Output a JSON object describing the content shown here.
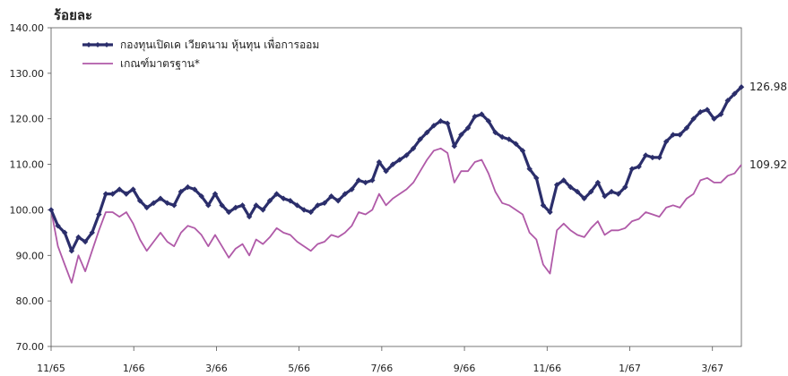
{
  "chart_data": {
    "type": "line",
    "title": "",
    "ylabel": "ร้อยละ",
    "xlabel": "",
    "ylim": [
      70,
      140
    ],
    "y_ticks": [
      "70.00",
      "80.00",
      "90.00",
      "100.00",
      "110.00",
      "120.00",
      "130.00",
      "140.00"
    ],
    "x_ticks": [
      "11/65",
      "1/66",
      "3/66",
      "5/66",
      "7/66",
      "9/66",
      "11/66",
      "1/67",
      "3/67"
    ],
    "legend_position": "top-left",
    "grid": false,
    "series": [
      {
        "name": "กองทุนเปิดเค เวียดนาม หุ้นทุน เพื่อการออม",
        "color": "#2b2e6b",
        "marker": "diamond",
        "end_label": "126.98",
        "points": [
          [
            0,
            100.0
          ],
          [
            1,
            96.5
          ],
          [
            2,
            95.0
          ],
          [
            3,
            91.0
          ],
          [
            4,
            94.0
          ],
          [
            5,
            93.0
          ],
          [
            6,
            95.0
          ],
          [
            7,
            99.0
          ],
          [
            8,
            103.5
          ],
          [
            9,
            103.5
          ],
          [
            10,
            104.5
          ],
          [
            11,
            103.5
          ],
          [
            12,
            104.5
          ],
          [
            13,
            102.0
          ],
          [
            14,
            100.5
          ],
          [
            15,
            101.5
          ],
          [
            16,
            102.5
          ],
          [
            17,
            101.5
          ],
          [
            18,
            101.0
          ],
          [
            19,
            104.0
          ],
          [
            20,
            105.0
          ],
          [
            21,
            104.5
          ],
          [
            22,
            103.0
          ],
          [
            23,
            101.0
          ],
          [
            24,
            103.5
          ],
          [
            25,
            101.0
          ],
          [
            26,
            99.5
          ],
          [
            27,
            100.5
          ],
          [
            28,
            101.0
          ],
          [
            29,
            98.5
          ],
          [
            30,
            101.0
          ],
          [
            31,
            100.0
          ],
          [
            32,
            102.0
          ],
          [
            33,
            103.5
          ],
          [
            34,
            102.5
          ],
          [
            35,
            102.0
          ],
          [
            36,
            101.0
          ],
          [
            37,
            100.0
          ],
          [
            38,
            99.5
          ],
          [
            39,
            101.0
          ],
          [
            40,
            101.5
          ],
          [
            41,
            103.0
          ],
          [
            42,
            102.0
          ],
          [
            43,
            103.5
          ],
          [
            44,
            104.5
          ],
          [
            45,
            106.5
          ],
          [
            46,
            106.0
          ],
          [
            47,
            106.5
          ],
          [
            48,
            110.5
          ],
          [
            49,
            108.5
          ],
          [
            50,
            110.0
          ],
          [
            51,
            111.0
          ],
          [
            52,
            112.0
          ],
          [
            53,
            113.5
          ],
          [
            54,
            115.5
          ],
          [
            55,
            117.0
          ],
          [
            56,
            118.5
          ],
          [
            57,
            119.5
          ],
          [
            58,
            119.0
          ],
          [
            59,
            114.0
          ],
          [
            60,
            116.5
          ],
          [
            61,
            118.0
          ],
          [
            62,
            120.5
          ],
          [
            63,
            121.0
          ],
          [
            64,
            119.5
          ],
          [
            65,
            117.0
          ],
          [
            66,
            116.0
          ],
          [
            67,
            115.5
          ],
          [
            68,
            114.5
          ],
          [
            69,
            113.0
          ],
          [
            70,
            109.0
          ],
          [
            71,
            107.0
          ],
          [
            72,
            101.0
          ],
          [
            73,
            99.5
          ],
          [
            74,
            105.5
          ],
          [
            75,
            106.5
          ],
          [
            76,
            105.0
          ],
          [
            77,
            104.0
          ],
          [
            78,
            102.5
          ],
          [
            79,
            104.0
          ],
          [
            80,
            106.0
          ],
          [
            81,
            103.0
          ],
          [
            82,
            104.0
          ],
          [
            83,
            103.5
          ],
          [
            84,
            105.0
          ],
          [
            85,
            109.0
          ],
          [
            86,
            109.5
          ],
          [
            87,
            112.0
          ],
          [
            88,
            111.5
          ],
          [
            89,
            111.5
          ],
          [
            90,
            115.0
          ],
          [
            91,
            116.5
          ],
          [
            92,
            116.5
          ],
          [
            93,
            118.0
          ],
          [
            94,
            120.0
          ],
          [
            95,
            121.5
          ],
          [
            96,
            122.0
          ],
          [
            97,
            120.0
          ],
          [
            98,
            121.0
          ],
          [
            99,
            124.0
          ],
          [
            100,
            125.5
          ],
          [
            101,
            126.98
          ]
        ]
      },
      {
        "name": "เกณฑ์มาตรฐาน*",
        "color": "#b05aa8",
        "marker": "none",
        "end_label": "109.92",
        "points": [
          [
            0,
            100.0
          ],
          [
            1,
            92.0
          ],
          [
            2,
            88.0
          ],
          [
            3,
            84.0
          ],
          [
            4,
            90.0
          ],
          [
            5,
            86.5
          ],
          [
            6,
            91.0
          ],
          [
            7,
            95.5
          ],
          [
            8,
            99.5
          ],
          [
            9,
            99.5
          ],
          [
            10,
            98.5
          ],
          [
            11,
            99.5
          ],
          [
            12,
            97.0
          ],
          [
            13,
            93.5
          ],
          [
            14,
            91.0
          ],
          [
            15,
            93.0
          ],
          [
            16,
            95.0
          ],
          [
            17,
            93.0
          ],
          [
            18,
            92.0
          ],
          [
            19,
            95.0
          ],
          [
            20,
            96.5
          ],
          [
            21,
            96.0
          ],
          [
            22,
            94.5
          ],
          [
            23,
            92.0
          ],
          [
            24,
            94.5
          ],
          [
            25,
            92.0
          ],
          [
            26,
            89.5
          ],
          [
            27,
            91.5
          ],
          [
            28,
            92.5
          ],
          [
            29,
            90.0
          ],
          [
            30,
            93.5
          ],
          [
            31,
            92.5
          ],
          [
            32,
            94.0
          ],
          [
            33,
            96.0
          ],
          [
            34,
            95.0
          ],
          [
            35,
            94.5
          ],
          [
            36,
            93.0
          ],
          [
            37,
            92.0
          ],
          [
            38,
            91.0
          ],
          [
            39,
            92.5
          ],
          [
            40,
            93.0
          ],
          [
            41,
            94.5
          ],
          [
            42,
            94.0
          ],
          [
            43,
            95.0
          ],
          [
            44,
            96.5
          ],
          [
            45,
            99.5
          ],
          [
            46,
            99.0
          ],
          [
            47,
            100.0
          ],
          [
            48,
            103.5
          ],
          [
            49,
            101.0
          ],
          [
            50,
            102.5
          ],
          [
            51,
            103.5
          ],
          [
            52,
            104.5
          ],
          [
            53,
            106.0
          ],
          [
            54,
            108.5
          ],
          [
            55,
            111.0
          ],
          [
            56,
            113.0
          ],
          [
            57,
            113.5
          ],
          [
            58,
            112.5
          ],
          [
            59,
            106.0
          ],
          [
            60,
            108.5
          ],
          [
            61,
            108.5
          ],
          [
            62,
            110.5
          ],
          [
            63,
            111.0
          ],
          [
            64,
            108.0
          ],
          [
            65,
            104.0
          ],
          [
            66,
            101.5
          ],
          [
            67,
            101.0
          ],
          [
            68,
            100.0
          ],
          [
            69,
            99.0
          ],
          [
            70,
            95.0
          ],
          [
            71,
            93.5
          ],
          [
            72,
            88.0
          ],
          [
            73,
            86.0
          ],
          [
            74,
            95.5
          ],
          [
            75,
            97.0
          ],
          [
            76,
            95.5
          ],
          [
            77,
            94.5
          ],
          [
            78,
            94.0
          ],
          [
            79,
            96.0
          ],
          [
            80,
            97.5
          ],
          [
            81,
            94.5
          ],
          [
            82,
            95.5
          ],
          [
            83,
            95.5
          ],
          [
            84,
            96.0
          ],
          [
            85,
            97.5
          ],
          [
            86,
            98.0
          ],
          [
            87,
            99.5
          ],
          [
            88,
            99.0
          ],
          [
            89,
            98.5
          ],
          [
            90,
            100.5
          ],
          [
            91,
            101.0
          ],
          [
            92,
            100.5
          ],
          [
            93,
            102.5
          ],
          [
            94,
            103.5
          ],
          [
            95,
            106.5
          ],
          [
            96,
            107.0
          ],
          [
            97,
            106.0
          ],
          [
            98,
            106.0
          ],
          [
            99,
            107.5
          ],
          [
            100,
            108.0
          ],
          [
            101,
            109.92
          ]
        ]
      }
    ]
  }
}
